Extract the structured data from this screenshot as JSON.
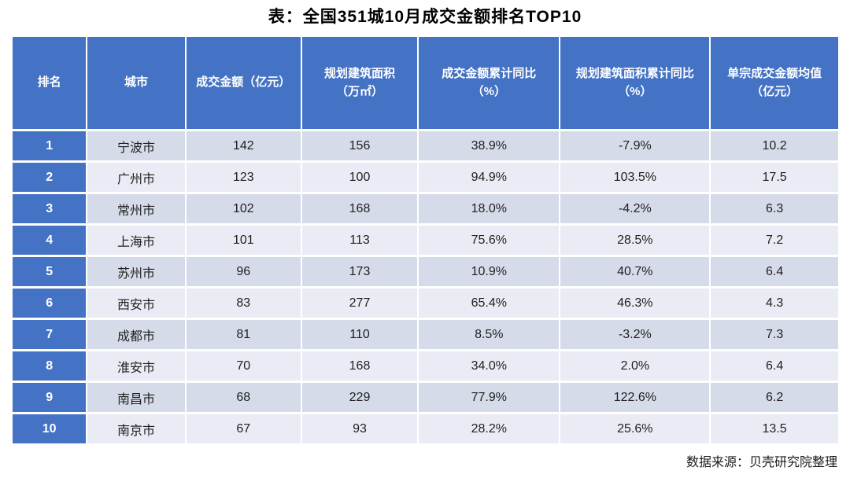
{
  "title": "表：全国351城10月成交金额排名TOP10",
  "source_note": "数据来源：贝壳研究院整理",
  "colors": {
    "header_blue": "#4472C4",
    "band_dark": "#D6DBE9",
    "band_light": "#EAECF5",
    "text_dark": "#1F1F1F",
    "header_text": "#FFFFFF"
  },
  "chart_data": {
    "type": "table",
    "title": "表：全国351城10月成交金额排名TOP10",
    "columns": [
      {
        "key": "rank",
        "line1": "排名",
        "line2": ""
      },
      {
        "key": "city",
        "line1": "城市",
        "line2": ""
      },
      {
        "key": "amount",
        "line1": "成交金额（亿元）",
        "line2": ""
      },
      {
        "key": "area",
        "line1": "规划建筑面积",
        "line2": "（万㎡）"
      },
      {
        "key": "amount_yoy",
        "line1": "成交金额累计同比",
        "line2": "（%）"
      },
      {
        "key": "area_yoy",
        "line1": "规划建筑面积累计同比",
        "line2": "（%）"
      },
      {
        "key": "avg_amount",
        "line1": "单宗成交金额均值",
        "line2": "（亿元）"
      }
    ],
    "rows": [
      {
        "rank": "1",
        "city": "宁波市",
        "amount": "142",
        "area": "156",
        "amount_yoy": "38.9%",
        "area_yoy": "-7.9%",
        "avg_amount": "10.2"
      },
      {
        "rank": "2",
        "city": "广州市",
        "amount": "123",
        "area": "100",
        "amount_yoy": "94.9%",
        "area_yoy": "103.5%",
        "avg_amount": "17.5"
      },
      {
        "rank": "3",
        "city": "常州市",
        "amount": "102",
        "area": "168",
        "amount_yoy": "18.0%",
        "area_yoy": "-4.2%",
        "avg_amount": "6.3"
      },
      {
        "rank": "4",
        "city": "上海市",
        "amount": "101",
        "area": "113",
        "amount_yoy": "75.6%",
        "area_yoy": "28.5%",
        "avg_amount": "7.2"
      },
      {
        "rank": "5",
        "city": "苏州市",
        "amount": "96",
        "area": "173",
        "amount_yoy": "10.9%",
        "area_yoy": "40.7%",
        "avg_amount": "6.4"
      },
      {
        "rank": "6",
        "city": "西安市",
        "amount": "83",
        "area": "277",
        "amount_yoy": "65.4%",
        "area_yoy": "46.3%",
        "avg_amount": "4.3"
      },
      {
        "rank": "7",
        "city": "成都市",
        "amount": "81",
        "area": "110",
        "amount_yoy": "8.5%",
        "area_yoy": "-3.2%",
        "avg_amount": "7.3"
      },
      {
        "rank": "8",
        "city": "淮安市",
        "amount": "70",
        "area": "168",
        "amount_yoy": "34.0%",
        "area_yoy": "2.0%",
        "avg_amount": "6.4"
      },
      {
        "rank": "9",
        "city": "南昌市",
        "amount": "68",
        "area": "229",
        "amount_yoy": "77.9%",
        "area_yoy": "122.6%",
        "avg_amount": "6.2"
      },
      {
        "rank": "10",
        "city": "南京市",
        "amount": "67",
        "area": "93",
        "amount_yoy": "28.2%",
        "area_yoy": "25.6%",
        "avg_amount": "13.5"
      }
    ]
  }
}
